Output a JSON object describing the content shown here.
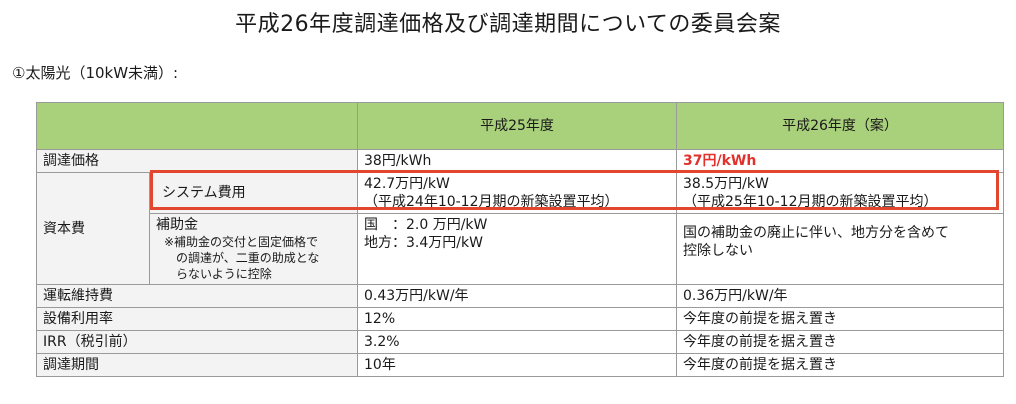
{
  "title": "平成26年度調達価格及び調達期間についての委員会案",
  "section_heading": "①太陽光（10kW未満）:",
  "table": {
    "header": {
      "col_fy25": "平成25年度",
      "col_fy26": "平成26年度（案）"
    },
    "rows": {
      "price": {
        "label": "調達価格",
        "fy25": "38円/kWh",
        "fy26": "37円/kWh"
      },
      "capital": {
        "label": "資本費",
        "system": {
          "label": "システム費用",
          "fy25_line1": "42.7万円/kW",
          "fy25_line2": "（平成24年10-12月期の新築設置平均）",
          "fy26_line1": "38.5万円/kW",
          "fy26_line2": "（平成25年10-12月期の新築設置平均）"
        },
        "subsidy": {
          "label": "補助金",
          "note_line1": "※補助金の交付と固定価格で",
          "note_line2": "の調達が、二重の助成とな",
          "note_line3": "らないように控除",
          "fy25_line1": "国　：2.0 万円/kW",
          "fy25_line2": "地方：3.4万円/kW",
          "fy26_line1": "国の補助金の廃止に伴い、地方分を含めて",
          "fy26_line2": "控除しない"
        }
      },
      "om": {
        "label": "運転維持費",
        "fy25": "0.43万円/kW/年",
        "fy26": "0.36万円/kW/年"
      },
      "utilization": {
        "label": "設備利用率",
        "fy25": "12%",
        "fy26": "今年度の前提を据え置き"
      },
      "irr": {
        "label": "IRR（税引前）",
        "fy25": "3.2%",
        "fy26": "今年度の前提を据え置き"
      },
      "period": {
        "label": "調達期間",
        "fy25": "10年",
        "fy26": "今年度の前提を据え置き"
      }
    }
  },
  "colors": {
    "header_bg": "#a9d07a",
    "highlight_border": "#e2462f",
    "price_red": "#e2312c"
  }
}
